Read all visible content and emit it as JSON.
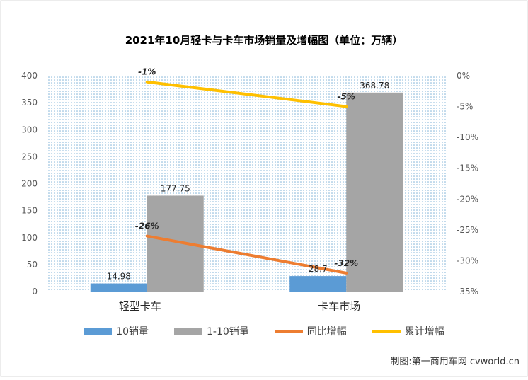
{
  "chart_data": {
    "type": "bar",
    "title": "2021年10月轻卡与卡车市场销量及增幅图（单位：万辆）",
    "categories": [
      "轻型卡车",
      "卡车市场"
    ],
    "y_left": {
      "ylim": [
        0,
        400
      ],
      "ticks": [
        "0",
        "50",
        "100",
        "150",
        "200",
        "250",
        "300",
        "350",
        "400"
      ]
    },
    "y_right": {
      "ylim": [
        -35,
        0
      ],
      "ticks": [
        "0%",
        "-5%",
        "-10%",
        "-15%",
        "-20%",
        "-25%",
        "-30%",
        "-35%"
      ]
    },
    "series": [
      {
        "name": "10销量",
        "type": "bar",
        "axis": "left",
        "color": "#5b9bd5",
        "values": [
          14.98,
          28.7
        ],
        "labels": [
          "14.98",
          "28.7"
        ]
      },
      {
        "name": "1-10销量",
        "type": "bar",
        "axis": "left",
        "color": "#a5a5a5",
        "values": [
          177.75,
          368.78
        ],
        "labels": [
          "177.75",
          "368.78"
        ]
      },
      {
        "name": "同比增幅",
        "type": "line",
        "axis": "right",
        "color": "#ed7d31",
        "values": [
          -26,
          -32
        ],
        "labels": [
          "-26%",
          "-32%"
        ]
      },
      {
        "name": "累计增幅",
        "type": "line",
        "axis": "right",
        "color": "#ffc000",
        "values": [
          -1,
          -5
        ],
        "labels": [
          "-1%",
          "-5%"
        ]
      }
    ],
    "legend": "bottom",
    "grid": false
  },
  "credit": "制图:第一商用车网 cvworld.cn"
}
